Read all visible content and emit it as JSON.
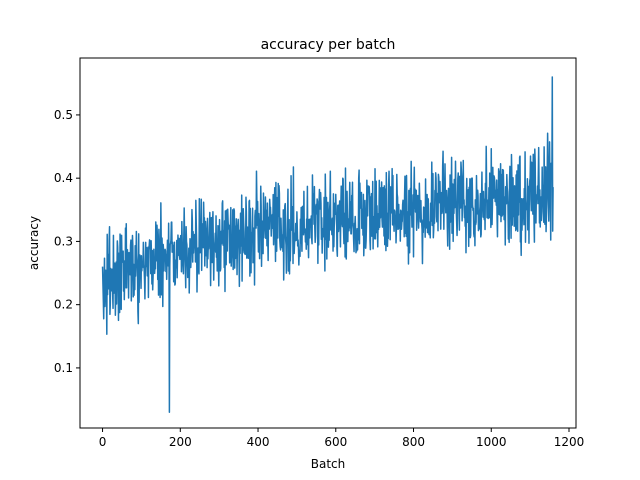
{
  "chart_data": {
    "type": "line",
    "title": "accuracy per batch",
    "xlabel": "Batch",
    "ylabel": "accuracy",
    "xlim": [
      -58,
      1218
    ],
    "ylim": [
      0.005,
      0.59
    ],
    "xticks": [
      0,
      200,
      400,
      600,
      800,
      1000,
      1200
    ],
    "xtick_labels": [
      "0",
      "200",
      "400",
      "600",
      "800",
      "1000",
      "1200"
    ],
    "yticks": [
      0.1,
      0.2,
      0.3,
      0.4,
      0.5
    ],
    "ytick_labels": [
      "0.1",
      "0.2",
      "0.3",
      "0.4",
      "0.5"
    ],
    "grid": false,
    "legend": "none",
    "line_color": "#1f77b4",
    "series": [
      {
        "x_start": 0,
        "x_step": 1,
        "count": 1160,
        "trend_start": 0.22,
        "trend_end": 0.38,
        "noise_amplitude": 0.1,
        "min": 0.03,
        "max": 0.56,
        "min_at": 172,
        "max_at": 1157
      }
    ]
  }
}
